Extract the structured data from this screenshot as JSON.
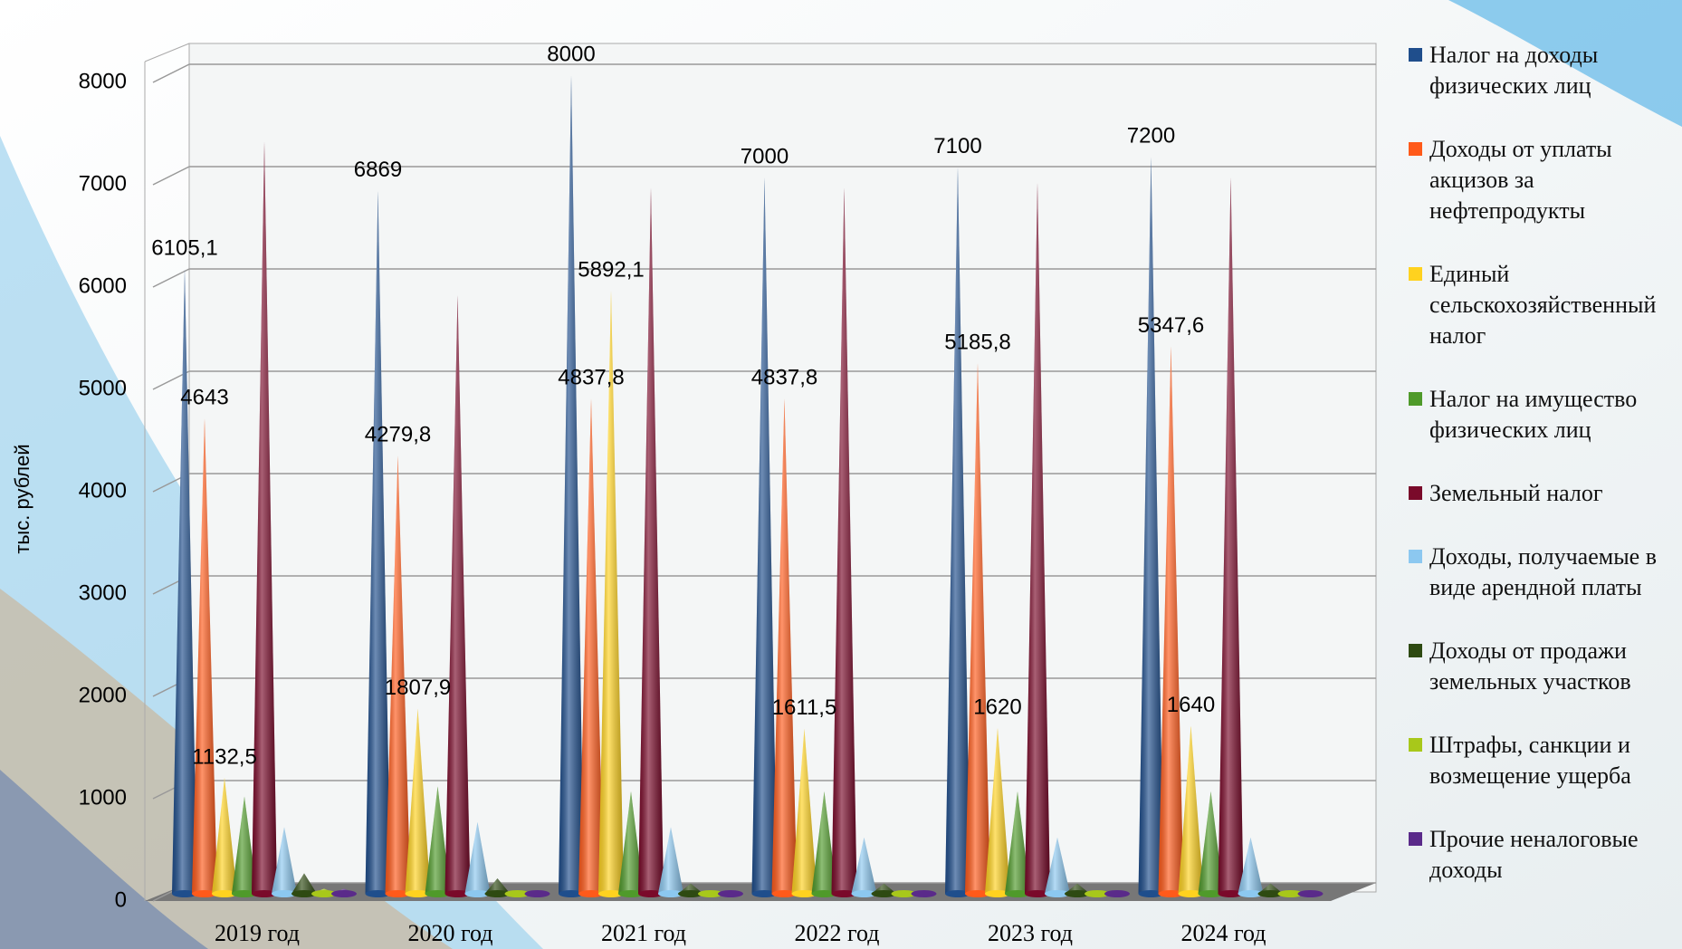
{
  "chart_data": {
    "type": "cone",
    "y_label": "тыс. рублей",
    "categories": [
      "2019 год",
      "2020 год",
      "2021 год",
      "2022 год",
      "2023 год",
      "2024 год"
    ],
    "ylim": [
      0,
      8000
    ],
    "yticks": [
      0,
      1000,
      2000,
      3000,
      4000,
      5000,
      6000,
      7000,
      8000
    ],
    "grid": true,
    "legend": "right",
    "series": [
      {
        "name": "Налог на доходы физических лиц",
        "color": "#1f4e8c",
        "values": [
          6105.1,
          6869,
          8000,
          7000,
          7100,
          7200
        ],
        "value_labels": [
          "6105,1",
          "6869",
          "8000",
          "7000",
          "7100",
          "7200"
        ]
      },
      {
        "name": "Доходы от уплаты акцизов за нефтепродукты",
        "color": "#ff5a1a",
        "values": [
          4643,
          4279.8,
          4837.8,
          4837.8,
          5185.8,
          5347.6
        ],
        "value_labels": [
          "4643",
          "4279,8",
          "4837,8",
          "4837,8",
          "5185,8",
          "5347,6"
        ]
      },
      {
        "name": "Единый сельскохозяйственный налог",
        "color": "#ffd21f",
        "values": [
          1132.5,
          1807.9,
          5892.1,
          1611.5,
          1620,
          1640
        ],
        "value_labels": [
          "1132,5",
          "1807,9",
          "5892,1",
          "1611,5",
          "1620",
          "1640"
        ]
      },
      {
        "name": "Налог на имущество физических лиц",
        "color": "#4f9a2a",
        "values": [
          950,
          1050,
          1000,
          1000,
          1000,
          1000
        ]
      },
      {
        "name": "Земельный налог",
        "color": "#7a0a2a",
        "values": [
          7350,
          5850,
          6900,
          6900,
          6950,
          7000
        ]
      },
      {
        "name": "Доходы, получаемые в виде арендной платы",
        "color": "#8cc8f0",
        "values": [
          650,
          700,
          650,
          550,
          550,
          550
        ]
      },
      {
        "name": "Доходы от продажи земельных участков",
        "color": "#2e4a12",
        "values": [
          200,
          150,
          100,
          100,
          100,
          100
        ]
      },
      {
        "name": "Штрафы, санкции и возмещение ущерба",
        "color": "#a8c81a",
        "values": [
          50,
          0,
          0,
          0,
          0,
          0
        ]
      },
      {
        "name": "Прочие неналоговые доходы",
        "color": "#5a2a8a",
        "values": [
          50,
          0,
          0,
          0,
          0,
          0
        ]
      }
    ]
  }
}
